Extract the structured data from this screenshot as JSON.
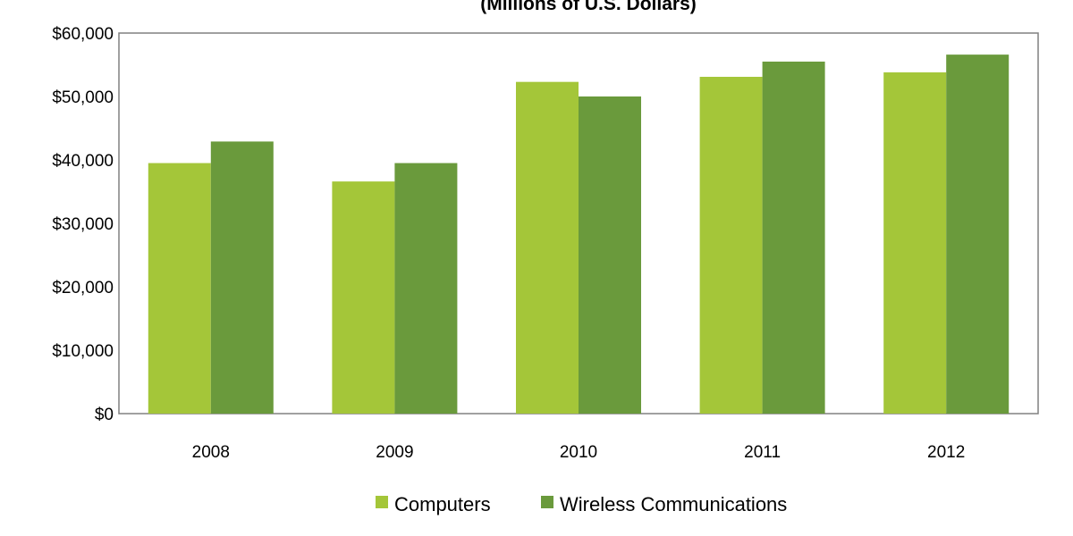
{
  "chart_data": {
    "type": "bar",
    "title": "(Millions of U.S. Dollars)",
    "xlabel": "",
    "ylabel": "",
    "categories": [
      "2008",
      "2009",
      "2010",
      "2011",
      "2012"
    ],
    "series": [
      {
        "name": "Computers",
        "color": "#a4c639",
        "values": [
          39500,
          36600,
          52300,
          53100,
          53800
        ]
      },
      {
        "name": "Wireless Communications",
        "color": "#6a9a3c",
        "values": [
          42900,
          39500,
          50000,
          55500,
          56600
        ]
      }
    ],
    "ylim": [
      0,
      60000
    ],
    "yticks": [
      "$0",
      "$10,000",
      "$20,000",
      "$30,000",
      "$40,000",
      "$50,000",
      "$60,000"
    ],
    "grid": false,
    "legend": "bottom"
  }
}
